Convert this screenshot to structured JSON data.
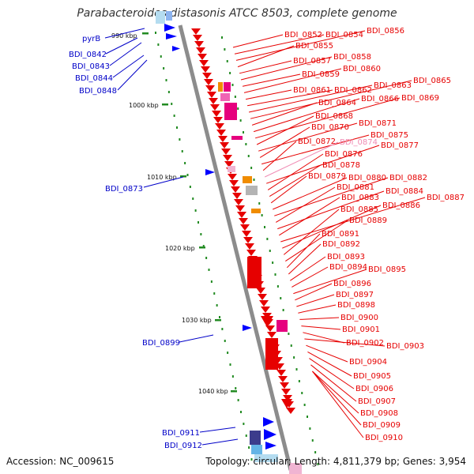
{
  "title": "Parabacteroides distasonis ATCC 8503, complete genome",
  "accession": "Accession: NC_009615",
  "topology": "Topology: circular; Length: 4,811,379 bp; Genes: 3,954",
  "colors": {
    "backbone": "#8c8c8c",
    "reverse_label": "#0000c8",
    "forward_label": "#e60000",
    "faded_label": "#f08cb4",
    "tick": "#228b22"
  },
  "scale_labels": [
    "990 kbp",
    "1000 kbp",
    "1010 kbp",
    "1020 kbp",
    "1030 kbp",
    "1040 kbp"
  ],
  "reverse_genes": [
    "pyrB",
    "BDI_0842",
    "BDI_0843",
    "BDI_0844",
    "BDI_0848",
    "BDI_0873",
    "BDI_0899",
    "BDI_0911",
    "BDI_0912"
  ],
  "forward_genes": [
    "BDI_0852",
    "BDI_0854",
    "BDI_0856",
    "BDI_0855",
    "BDI_0857",
    "BDI_0858",
    "BDI_0859",
    "BDI_0860",
    "BDI_0861",
    "BDI_0862",
    "BDI_0863",
    "BDI_0865",
    "BDI_0864",
    "BDI_0866",
    "BDI_0869",
    "BDI_0868",
    "BDI_0871",
    "BDI_0870",
    "BDI_0875",
    "BDI_0872",
    "BDI_0874",
    "BDI_0877",
    "BDI_0876",
    "BDI_0878",
    "BDI_0879",
    "BDI_0880",
    "BDI_0882",
    "BDI_0881",
    "BDI_0884",
    "BDI_0883",
    "BDI_0887",
    "BDI_0886",
    "BDI_0885",
    "BDI_0889",
    "BDI_0891",
    "BDI_0892",
    "BDI_0893",
    "BDI_0894",
    "BDI_0895",
    "BDI_0896",
    "BDI_0897",
    "BDI_0898",
    "BDI_0900",
    "BDI_0901",
    "BDI_0902",
    "BDI_0903",
    "BDI_0904",
    "BDI_0905",
    "BDI_0906",
    "BDI_0907",
    "BDI_0908",
    "BDI_0909",
    "BDI_0910"
  ]
}
